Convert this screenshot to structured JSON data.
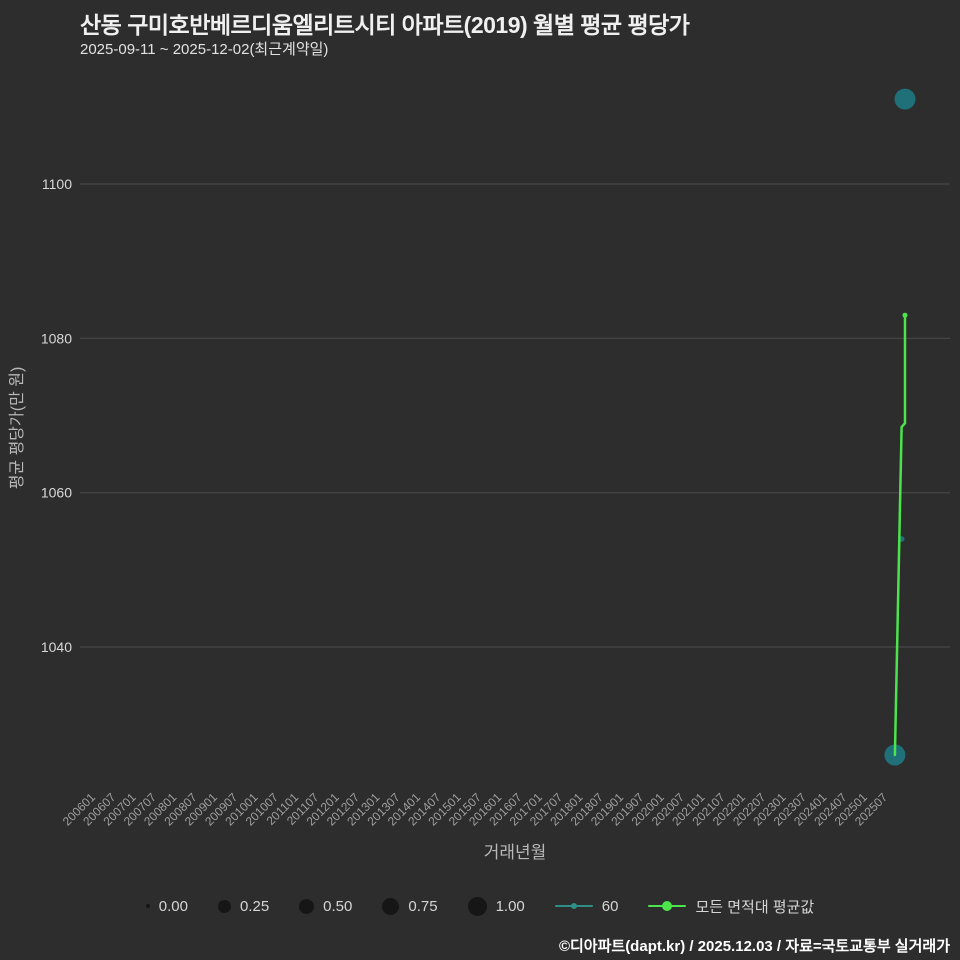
{
  "header": {
    "title": "산동 구미호반베르디움엘리트시티 아파트(2019) 월별 평균 평당가",
    "subtitle": "2025-09-11 ~ 2025-12-02(최근계약일)"
  },
  "footer": {
    "credit": "©디아파트(dapt.kr) / 2025.12.03 / 자료=국토교통부 실거래가"
  },
  "colors": {
    "background": "#2d2d2d",
    "grid": "#4d4d4d",
    "tick_x": "#9f9f9f",
    "tick_y": "#d8d8d8",
    "axis_label": "#b8b8b8",
    "title": "#f0f0f0",
    "green": "#4ce44c",
    "teal": "#20707a",
    "size_dot": "#161616",
    "footer": "#ffffff"
  },
  "chart_data": {
    "type": "line",
    "title": "산동 구미호반베르디움엘리트시티 아파트(2019) 월별 평균 평당가",
    "subtitle": "2025-09-11 ~ 2025-12-02(최근계약일)",
    "xlabel": "거래년월",
    "ylabel": "평균 평당가(만 원)",
    "y_ticks": [
      1040,
      1060,
      1080,
      1100
    ],
    "ylim": [
      1022,
      1114
    ],
    "grid": "horizontal only",
    "legend_position": "bottom",
    "x_tick_labels": [
      "200601",
      "200607",
      "200701",
      "200707",
      "200801",
      "200807",
      "200901",
      "200907",
      "201001",
      "201007",
      "201101",
      "201107",
      "201201",
      "201207",
      "201301",
      "201307",
      "201401",
      "201407",
      "201501",
      "201507",
      "201601",
      "201607",
      "201701",
      "201707",
      "201801",
      "201807",
      "201901",
      "201907",
      "202001",
      "202007",
      "202101",
      "202107",
      "202201",
      "202207",
      "202301",
      "202307",
      "202401",
      "202407",
      "202501",
      "202507"
    ],
    "series": [
      {
        "name": "60",
        "type": "scatter",
        "color": "#20707a",
        "points": [
          {
            "x": "202509",
            "y": 1026,
            "size": 1.0
          },
          {
            "x": "202511",
            "y": 1054,
            "size": 0.05
          },
          {
            "x": "202512",
            "y": 1111,
            "size": 1.0
          }
        ]
      },
      {
        "name": "모든 면적대 평균값",
        "type": "line",
        "color": "#4ce44c",
        "points": [
          {
            "x": "202509",
            "y": 1026
          },
          {
            "x": "202511",
            "y": 1068.5
          },
          {
            "x": "202512",
            "y": 1069
          },
          {
            "x": "202512",
            "y": 1083
          }
        ]
      }
    ]
  },
  "legend": {
    "sizes": [
      {
        "label": "0.00",
        "r": 2
      },
      {
        "label": "0.25",
        "r": 6.5
      },
      {
        "label": "0.50",
        "r": 7.5
      },
      {
        "label": "0.75",
        "r": 8.5
      },
      {
        "label": "1.00",
        "r": 9.5
      }
    ],
    "series": [
      {
        "label": "60",
        "color": "#2f8e86"
      },
      {
        "label": "모든 면적대 평균값",
        "color": "#4ce44c"
      }
    ]
  }
}
